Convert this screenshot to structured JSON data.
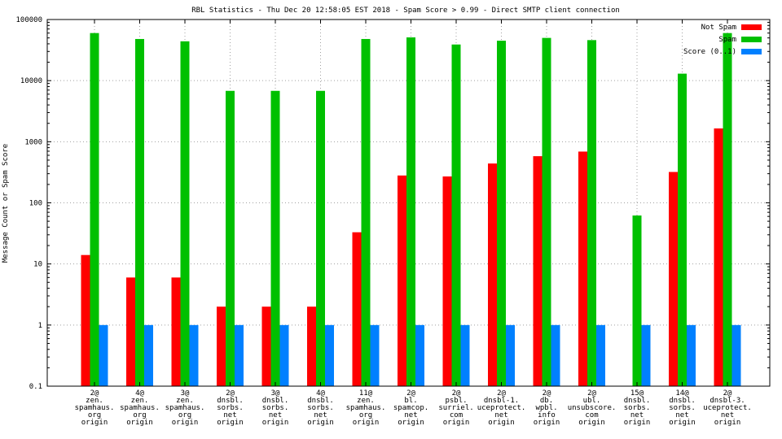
{
  "chart_data": {
    "type": "bar",
    "title": "RBL Statistics - Thu Dec 20 12:58:05 EST 2018 - Spam Score > 0.99 - Direct SMTP client connection",
    "xlabel": "",
    "ylabel": "Message Count or Spam Score",
    "yscale": "log",
    "ylim": [
      0.1,
      100000
    ],
    "yticks": [
      "0.1",
      "1",
      "10",
      "100",
      "1000",
      "10000",
      "100000"
    ],
    "grid": true,
    "legend_position": "top-right",
    "categories": [
      [
        "2@",
        "zen.",
        "spamhaus.",
        "org",
        "origin"
      ],
      [
        "4@",
        "zen.",
        "spamhaus.",
        "org",
        "origin"
      ],
      [
        "3@",
        "zen.",
        "spamhaus.",
        "org",
        "origin"
      ],
      [
        "2@",
        "dnsbl.",
        "sorbs.",
        "net",
        "origin"
      ],
      [
        "3@",
        "dnsbl.",
        "sorbs.",
        "net",
        "origin"
      ],
      [
        "4@",
        "dnsbl.",
        "sorbs.",
        "net",
        "origin"
      ],
      [
        "11@",
        "zen.",
        "spamhaus.",
        "org",
        "origin"
      ],
      [
        "2@",
        "bl.",
        "spamcop.",
        "net",
        "origin"
      ],
      [
        "2@",
        "psbl.",
        "surriel.",
        "com",
        "origin"
      ],
      [
        "2@",
        "dnsbl-1.",
        "uceprotect.",
        "net",
        "origin"
      ],
      [
        "2@",
        "db.",
        "wpbl.",
        "info",
        "origin"
      ],
      [
        "2@",
        "ubl.",
        "unsubscore.",
        "com",
        "origin"
      ],
      [
        "15@",
        "dnsbl.",
        "sorbs.",
        "net",
        "origin"
      ],
      [
        "14@",
        "dnsbl.",
        "sorbs.",
        "net",
        "origin"
      ],
      [
        "2@",
        "dnsbl-3.",
        "uceprotect.",
        "net",
        "origin"
      ]
    ],
    "series": [
      {
        "name": "Not Spam",
        "color": "#ff0000",
        "values": [
          14,
          6,
          6,
          2,
          2,
          2,
          33,
          280,
          270,
          440,
          580,
          690,
          null,
          320,
          1650
        ]
      },
      {
        "name": "Spam",
        "color": "#00c000",
        "values": [
          60000,
          48000,
          44000,
          6800,
          6800,
          6800,
          48000,
          51000,
          39000,
          45000,
          50000,
          46000,
          62,
          13000,
          60000
        ]
      },
      {
        "name": "Score (0..1)",
        "color": "#0080ff",
        "values": [
          1,
          1,
          1,
          1,
          1,
          1,
          1,
          1,
          1,
          1,
          1,
          1,
          1,
          1,
          1
        ]
      }
    ]
  }
}
